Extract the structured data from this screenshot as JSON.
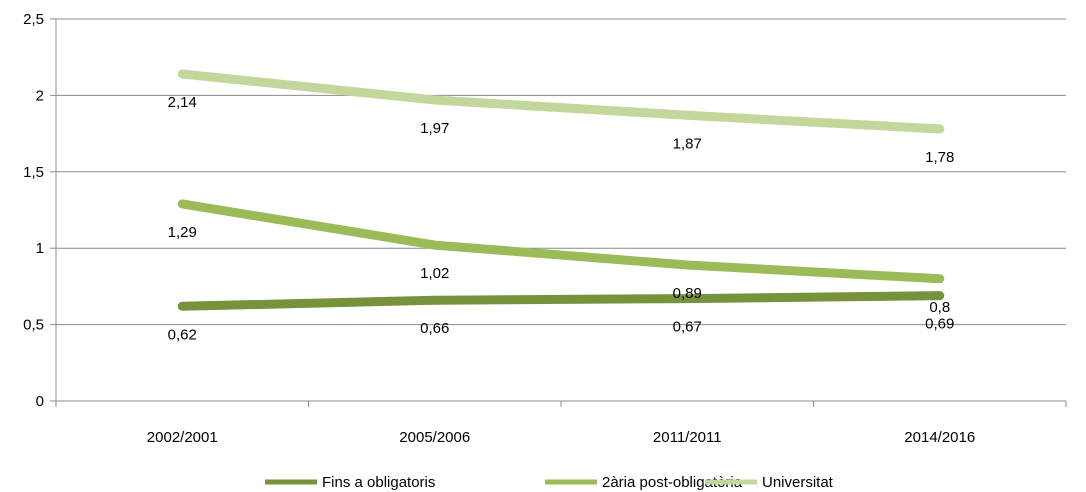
{
  "chart_data": {
    "type": "line",
    "categories": [
      "2002/2001",
      "2005/2006",
      "2011/2011",
      "2014/2016"
    ],
    "series": [
      {
        "name": "Fins a obligatoris",
        "values": [
          0.62,
          0.66,
          0.67,
          0.69
        ],
        "labels": [
          "0,62",
          "0,66",
          "0,67",
          "0,69"
        ],
        "color": "#76923c"
      },
      {
        "name": "2ària post-obligatòria",
        "values": [
          1.29,
          1.02,
          0.89,
          0.8
        ],
        "labels": [
          "1,29",
          "1,02",
          "0,89",
          "0,8"
        ],
        "color": "#9bbb59"
      },
      {
        "name": "Universitat",
        "values": [
          2.14,
          1.97,
          1.87,
          1.78
        ],
        "labels": [
          "2,14",
          "1,97",
          "1,87",
          "1,78"
        ],
        "color": "#c3d69b"
      }
    ],
    "ylim": [
      0,
      2.5
    ],
    "y_ticks": [
      0,
      0.5,
      1,
      1.5,
      2,
      2.5
    ],
    "y_tick_labels": [
      "0",
      "0,5",
      "1",
      "1,5",
      "2",
      "2,5"
    ],
    "grid": true,
    "legend_position": "bottom",
    "title": "",
    "xlabel": "",
    "ylabel": ""
  }
}
